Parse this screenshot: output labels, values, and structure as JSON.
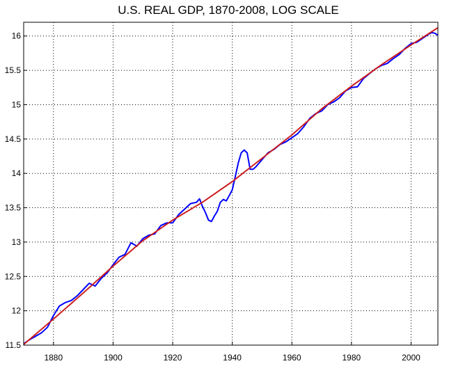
{
  "chart_data": {
    "type": "line",
    "title": "U.S. REAL GDP, 1870-2008, LOG SCALE",
    "xlabel": "",
    "ylabel": "",
    "xlim": [
      1870,
      2009
    ],
    "ylim": [
      11.5,
      16.2
    ],
    "xticks": [
      1880,
      1900,
      1920,
      1940,
      1960,
      1980,
      2000
    ],
    "yticks": [
      11.5,
      12,
      12.5,
      13,
      13.5,
      14,
      14.5,
      15,
      15.5,
      16
    ],
    "ytick_labels": [
      "11.5",
      "12",
      "12.5",
      "13",
      "13.5",
      "14",
      "14.5",
      "15",
      "15.5",
      "16"
    ],
    "grid": true,
    "series": [
      {
        "color": "#0000ff",
        "x": [
          1870,
          1872,
          1874,
          1876,
          1878,
          1880,
          1882,
          1884,
          1886,
          1888,
          1890,
          1892,
          1894,
          1896,
          1898,
          1900,
          1902,
          1904,
          1906,
          1908,
          1910,
          1912,
          1914,
          1916,
          1918,
          1920,
          1922,
          1924,
          1926,
          1928,
          1929,
          1930,
          1931,
          1932,
          1933,
          1934,
          1935,
          1936,
          1937,
          1938,
          1939,
          1940,
          1941,
          1942,
          1943,
          1944,
          1945,
          1946,
          1947,
          1948,
          1950,
          1952,
          1954,
          1956,
          1958,
          1960,
          1962,
          1964,
          1966,
          1968,
          1970,
          1972,
          1974,
          1976,
          1978,
          1980,
          1982,
          1984,
          1986,
          1988,
          1990,
          1992,
          1994,
          1996,
          1998,
          2000,
          2002,
          2004,
          2006,
          2007,
          2008,
          2009
        ],
        "y": [
          11.52,
          11.58,
          11.63,
          11.68,
          11.76,
          11.93,
          12.07,
          12.12,
          12.15,
          12.22,
          12.31,
          12.4,
          12.36,
          12.47,
          12.55,
          12.67,
          12.78,
          12.82,
          12.99,
          12.94,
          13.05,
          13.1,
          13.12,
          13.24,
          13.28,
          13.28,
          13.4,
          13.48,
          13.56,
          13.58,
          13.63,
          13.52,
          13.43,
          13.32,
          13.3,
          13.38,
          13.45,
          13.58,
          13.62,
          13.6,
          13.68,
          13.76,
          13.95,
          14.15,
          14.3,
          14.34,
          14.3,
          14.06,
          14.06,
          14.1,
          14.2,
          14.3,
          14.35,
          14.42,
          14.46,
          14.52,
          14.58,
          14.68,
          14.8,
          14.87,
          14.91,
          15.0,
          15.04,
          15.1,
          15.2,
          15.25,
          15.26,
          15.38,
          15.45,
          15.52,
          15.57,
          15.6,
          15.67,
          15.73,
          15.82,
          15.89,
          15.91,
          15.97,
          16.03,
          16.05,
          16.04,
          16.01
        ]
      },
      {
        "color": "#cc1f1f",
        "x": [
          1870,
          1880,
          1890,
          1900,
          1910,
          1920,
          1930,
          1940,
          1950,
          1960,
          1970,
          1980,
          1990,
          2000,
          2009
        ],
        "y": [
          11.51,
          11.88,
          12.26,
          12.65,
          13.02,
          13.32,
          13.58,
          13.88,
          14.22,
          14.56,
          14.94,
          15.27,
          15.58,
          15.87,
          16.12
        ]
      }
    ]
  }
}
